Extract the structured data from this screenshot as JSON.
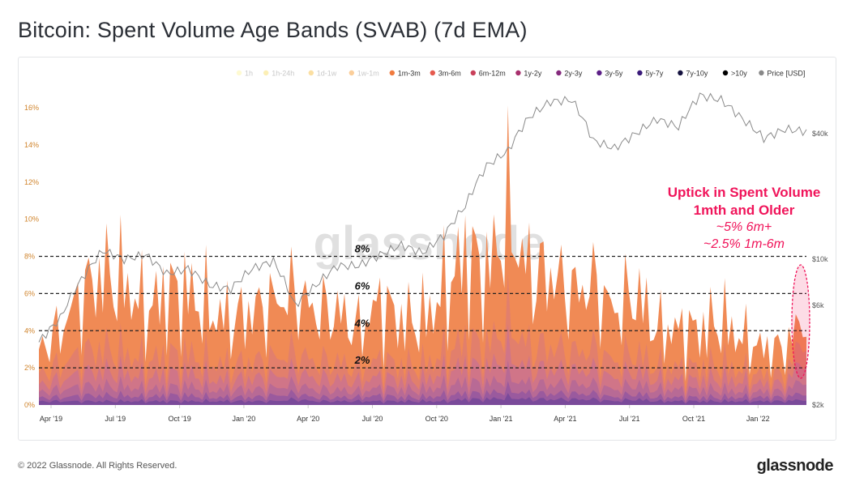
{
  "title": "Bitcoin: Spent Volume Age Bands (SVAB) (7d EMA)",
  "footer": "© 2022 Glassnode. All Rights Reserved.",
  "logo": "glassnode",
  "watermark": "glassnode",
  "chart_data": {
    "type": "area",
    "stacked": true,
    "title": "Bitcoin: Spent Volume Age Bands (SVAB) (7d EMA)",
    "x": [
      "2019-03",
      "2019-04",
      "2019-05",
      "2019-06",
      "2019-07",
      "2019-08",
      "2019-09",
      "2019-10",
      "2019-11",
      "2019-12",
      "2020-01",
      "2020-02",
      "2020-03",
      "2020-04",
      "2020-05",
      "2020-06",
      "2020-07",
      "2020-08",
      "2020-09",
      "2020-10",
      "2020-11",
      "2020-12",
      "2021-01",
      "2021-02",
      "2021-03",
      "2021-04",
      "2021-05",
      "2021-06",
      "2021-07",
      "2021-08",
      "2021-09",
      "2021-10",
      "2021-11",
      "2021-12",
      "2022-01",
      "2022-02",
      "2022-03"
    ],
    "x_ticks": [
      "Apr '19",
      "Jul '19",
      "Oct '19",
      "Jan '20",
      "Apr '20",
      "Jul '20",
      "Oct '20",
      "Jan '21",
      "Apr '21",
      "Jul '21",
      "Oct '21",
      "Jan '22"
    ],
    "y_ticks": [
      "0%",
      "2%",
      "4%",
      "6%",
      "8%",
      "10%",
      "12%",
      "14%",
      "16%"
    ],
    "ylim": [
      0,
      16
    ],
    "y2_ticks": [
      "$2k",
      "$6k",
      "$10k",
      "$40k"
    ],
    "y2_scale": "log",
    "legend": [
      {
        "name": "1h",
        "color": "#fdf59a",
        "faded": true
      },
      {
        "name": "1h-24h",
        "color": "#f9dc5c",
        "faded": true
      },
      {
        "name": "1d-1w",
        "color": "#f7b731",
        "faded": true
      },
      {
        "name": "1w-1m",
        "color": "#f6921e",
        "faded": true
      },
      {
        "name": "1m-3m",
        "color": "#f07b3f",
        "faded": false
      },
      {
        "name": "3m-6m",
        "color": "#e55a4e",
        "faded": false
      },
      {
        "name": "6m-12m",
        "color": "#c9405a",
        "faded": false
      },
      {
        "name": "1y-2y",
        "color": "#a8306d",
        "faded": false
      },
      {
        "name": "2y-3y",
        "color": "#852a7d",
        "faded": false
      },
      {
        "name": "3y-5y",
        "color": "#5c1f87",
        "faded": false
      },
      {
        "name": "5y-7y",
        "color": "#3a1a7a",
        "faded": false
      },
      {
        "name": "7y-10y",
        "color": "#15123f",
        "faded": false
      },
      {
        "name": ">10y",
        "color": "#000000",
        "faded": false
      },
      {
        "name": "Price [USD]",
        "color": "#888888",
        "faded": false
      }
    ],
    "series": [
      {
        "name": "3y-5y",
        "color": "#7a4a9a",
        "values": [
          0.2,
          0.2,
          0.2,
          0.2,
          0.2,
          0.2,
          0.2,
          0.2,
          0.2,
          0.2,
          0.2,
          0.2,
          0.3,
          0.2,
          0.2,
          0.2,
          0.2,
          0.2,
          0.2,
          0.2,
          0.3,
          0.3,
          0.4,
          0.3,
          0.3,
          0.3,
          0.3,
          0.2,
          0.3,
          0.2,
          0.2,
          0.2,
          0.2,
          0.2,
          0.2,
          0.2,
          0.3
        ]
      },
      {
        "name": "2y-3y",
        "color": "#9a5a9e",
        "values": [
          0.2,
          0.2,
          0.3,
          0.3,
          0.3,
          0.2,
          0.3,
          0.3,
          0.2,
          0.2,
          0.2,
          0.3,
          0.3,
          0.2,
          0.2,
          0.2,
          0.3,
          0.2,
          0.2,
          0.3,
          0.3,
          0.3,
          0.4,
          0.3,
          0.3,
          0.3,
          0.3,
          0.2,
          0.3,
          0.2,
          0.2,
          0.2,
          0.2,
          0.2,
          0.2,
          0.2,
          0.4
        ]
      },
      {
        "name": "1y-2y",
        "color": "#b86a95",
        "values": [
          0.3,
          0.4,
          0.5,
          0.5,
          0.5,
          0.4,
          0.4,
          0.5,
          0.4,
          0.4,
          0.4,
          0.4,
          0.5,
          0.4,
          0.4,
          0.3,
          0.4,
          0.4,
          0.4,
          0.5,
          0.6,
          0.5,
          0.7,
          0.5,
          0.5,
          0.5,
          0.5,
          0.4,
          0.5,
          0.4,
          0.4,
          0.4,
          0.4,
          0.3,
          0.3,
          0.3,
          0.8
        ]
      },
      {
        "name": "6m-12m",
        "color": "#d07588",
        "values": [
          0.4,
          0.5,
          0.7,
          0.8,
          0.7,
          0.6,
          0.7,
          0.7,
          0.6,
          0.5,
          0.6,
          0.6,
          0.7,
          0.6,
          0.6,
          0.5,
          0.6,
          0.5,
          0.5,
          0.7,
          0.9,
          0.8,
          1.2,
          0.8,
          0.8,
          0.7,
          0.8,
          0.6,
          0.7,
          0.5,
          0.5,
          0.5,
          0.6,
          0.5,
          0.4,
          0.4,
          1.2
        ]
      },
      {
        "name": "3m-6m",
        "color": "#e27f6c",
        "values": [
          0.6,
          0.8,
          1.1,
          1.2,
          1.1,
          0.9,
          1.0,
          1.0,
          0.9,
          0.8,
          0.9,
          1.0,
          1.0,
          0.9,
          0.9,
          0.7,
          0.9,
          0.8,
          0.8,
          1.0,
          1.3,
          1.2,
          1.7,
          1.2,
          1.2,
          1.0,
          1.1,
          0.9,
          1.0,
          0.7,
          0.7,
          0.7,
          0.8,
          0.6,
          0.5,
          0.5,
          1.3
        ]
      },
      {
        "name": "1m-3m",
        "color": "#f08a55",
        "values": [
          1.3,
          1.9,
          3.2,
          4.0,
          3.7,
          2.7,
          3.4,
          3.3,
          2.7,
          2.4,
          2.7,
          3.0,
          3.2,
          2.7,
          2.7,
          2.1,
          3.1,
          2.4,
          2.4,
          3.3,
          4.6,
          3.9,
          5.6,
          3.9,
          3.9,
          3.2,
          3.5,
          2.7,
          3.2,
          2.0,
          2.0,
          2.0,
          2.3,
          1.7,
          1.4,
          1.4,
          1.0
        ]
      }
    ],
    "price": {
      "name": "Price [USD]",
      "color": "#8a8a8a",
      "values": [
        4,
        5.2,
        8,
        11,
        10,
        10.5,
        8.5,
        9,
        7.5,
        7.2,
        9,
        9.8,
        6,
        7.5,
        9.3,
        9.3,
        10.5,
        11.7,
        10.7,
        13,
        18,
        28,
        33,
        48,
        57,
        58,
        37,
        34,
        40,
        47,
        43,
        61,
        58,
        47,
        38,
        42,
        41
      ]
    },
    "reference_lines": [
      {
        "value": 2,
        "label": "2%"
      },
      {
        "value": 4,
        "label": "4%"
      },
      {
        "value": 6,
        "label": "6%"
      },
      {
        "value": 8,
        "label": "8%"
      }
    ],
    "annotation": {
      "headline": [
        "Uptick in Spent Volume",
        "1mth and Older"
      ],
      "details": [
        "~5% 6m+",
        "~2.5% 1m-6m"
      ],
      "color": "#f0145a"
    }
  }
}
